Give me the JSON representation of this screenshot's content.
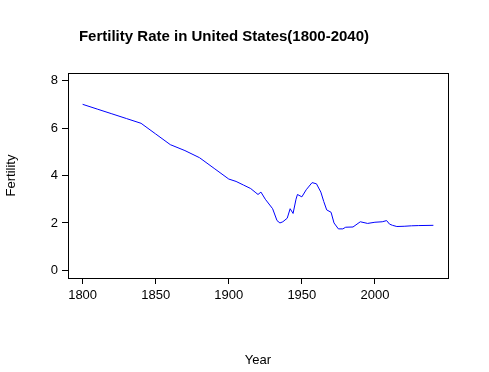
{
  "chart_data": {
    "type": "line",
    "title": "Fertility Rate in United States(1800-2040)",
    "x_label": "Year",
    "y_label": "Fertility",
    "x": [
      1800,
      1810,
      1820,
      1830,
      1840,
      1850,
      1860,
      1870,
      1880,
      1890,
      1900,
      1905,
      1910,
      1915,
      1918,
      1920,
      1922,
      1925,
      1930,
      1933,
      1935,
      1937,
      1940,
      1942,
      1944,
      1946,
      1947,
      1950,
      1953,
      1957,
      1960,
      1963,
      1965,
      1967,
      1970,
      1972,
      1975,
      1978,
      1980,
      1985,
      1990,
      1995,
      2000,
      2005,
      2008,
      2010,
      2012,
      2015,
      2020,
      2025,
      2030,
      2040
    ],
    "values": [
      7.0,
      6.8,
      6.6,
      6.4,
      6.2,
      5.75,
      5.3,
      5.05,
      4.75,
      4.3,
      3.85,
      3.75,
      3.6,
      3.45,
      3.3,
      3.2,
      3.3,
      3.0,
      2.6,
      2.1,
      2.0,
      2.05,
      2.2,
      2.6,
      2.4,
      3.0,
      3.2,
      3.1,
      3.4,
      3.7,
      3.65,
      3.3,
      2.9,
      2.55,
      2.45,
      2.0,
      1.75,
      1.75,
      1.82,
      1.83,
      2.05,
      1.98,
      2.03,
      2.05,
      2.1,
      1.95,
      1.9,
      1.85,
      1.86,
      1.88,
      1.89,
      1.9
    ],
    "color": "#0000ff",
    "xlim": [
      1790,
      2050
    ],
    "ylim": [
      -0.32,
      8.32
    ],
    "xticks": [
      1800,
      1850,
      1900,
      1950,
      2000
    ],
    "yticks": [
      0,
      2,
      4,
      6,
      8
    ],
    "grid": false
  }
}
